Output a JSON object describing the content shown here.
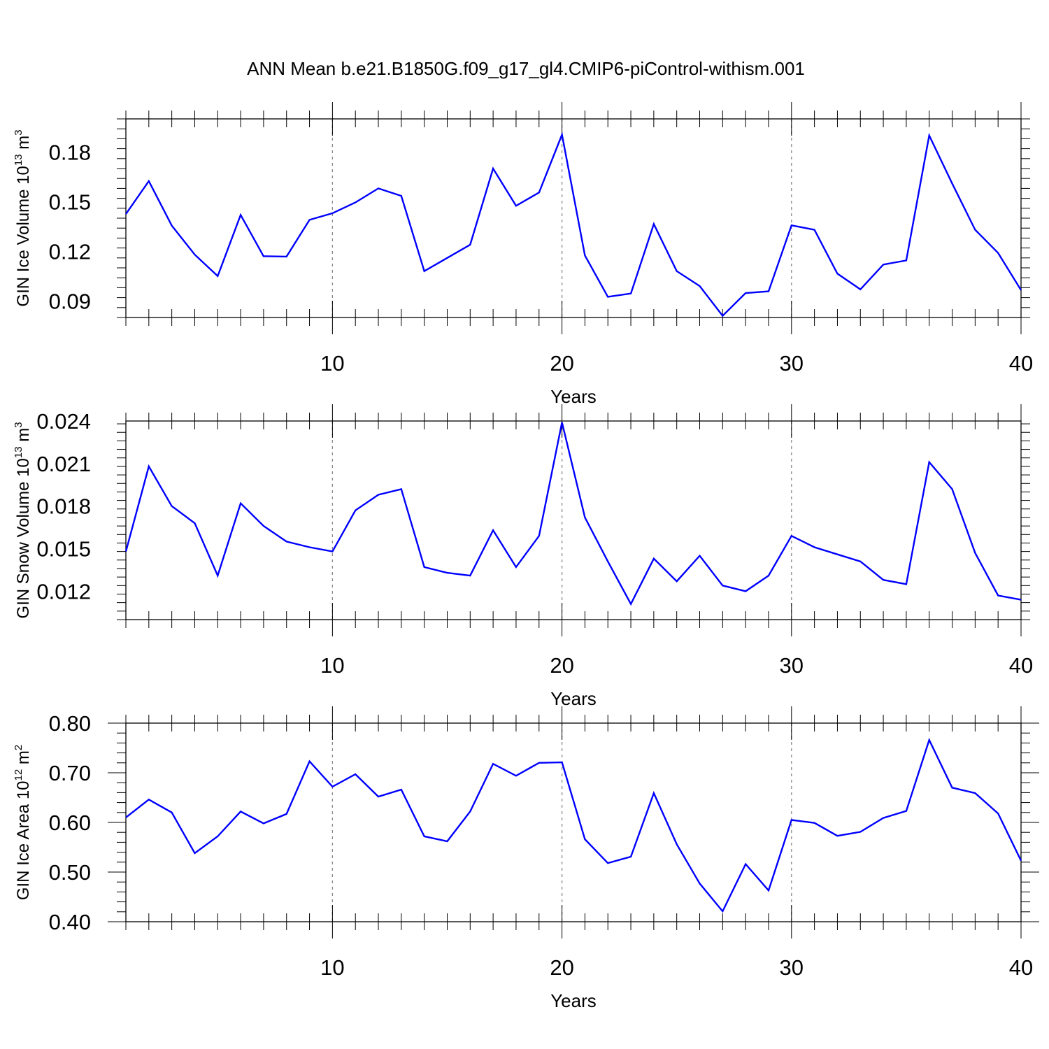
{
  "title": "ANN Mean b.e21.B1850G.f09_g17_gl4.CMIP6-piControl-withism.001",
  "colors": {
    "line": "#0000ff",
    "axis": "#000000",
    "grid": "#888888"
  },
  "chart_data": [
    {
      "type": "line",
      "ylabel": "GIN Ice Volume 10",
      "ylabel_exp": "13",
      "ylabel_unit": " m",
      "ylabel_unit_exp": "3",
      "xlabel": "Years",
      "xlim": [
        1,
        40
      ],
      "ylim": [
        0.08,
        0.2
      ],
      "xticks": [
        10,
        20,
        30,
        40
      ],
      "xtick_labels": [
        "10",
        "20",
        "30",
        "40"
      ],
      "yticks": [
        0.09,
        0.12,
        0.15,
        0.18
      ],
      "ytick_labels": [
        "0.09",
        "0.12",
        "0.15",
        "0.18"
      ],
      "grid_x": [
        10,
        20,
        30
      ],
      "x": [
        1,
        2,
        3,
        4,
        5,
        6,
        7,
        8,
        9,
        10,
        11,
        12,
        13,
        14,
        15,
        16,
        17,
        18,
        19,
        20,
        21,
        22,
        23,
        24,
        25,
        26,
        27,
        28,
        29,
        30,
        31,
        32,
        33,
        34,
        35,
        36,
        37,
        38,
        39,
        40
      ],
      "series": [
        {
          "values": [
            0.1425,
            0.1624,
            0.1355,
            0.118,
            0.105,
            0.142,
            0.117,
            0.1168,
            0.139,
            0.143,
            0.1495,
            0.158,
            0.1535,
            0.108,
            0.116,
            0.124,
            0.17,
            0.1475,
            0.1555,
            0.1905,
            0.1175,
            0.0925,
            0.0945,
            0.1365,
            0.108,
            0.099,
            0.081,
            0.0948,
            0.0958,
            0.1357,
            0.133,
            0.1065,
            0.097,
            0.112,
            0.1145,
            0.19,
            0.161,
            0.133,
            0.119,
            0.0965
          ]
        }
      ]
    },
    {
      "type": "line",
      "ylabel": "GIN Snow Volume 10",
      "ylabel_exp": "13",
      "ylabel_unit": " m",
      "ylabel_unit_exp": "3",
      "xlabel": "Years",
      "xlim": [
        1,
        40
      ],
      "ylim": [
        0.01,
        0.024
      ],
      "xticks": [
        10,
        20,
        30,
        40
      ],
      "xtick_labels": [
        "10",
        "20",
        "30",
        "40"
      ],
      "yticks": [
        0.012,
        0.015,
        0.018,
        0.021,
        0.024
      ],
      "ytick_labels": [
        "0.012",
        "0.015",
        "0.018",
        "0.021",
        "0.024"
      ],
      "grid_x": [
        10,
        20,
        30
      ],
      "x": [
        1,
        2,
        3,
        4,
        5,
        6,
        7,
        8,
        9,
        10,
        11,
        12,
        13,
        14,
        15,
        16,
        17,
        18,
        19,
        20,
        21,
        22,
        23,
        24,
        25,
        26,
        27,
        28,
        29,
        30,
        31,
        32,
        33,
        34,
        35,
        36,
        37,
        38,
        39,
        40
      ],
      "series": [
        {
          "values": [
            0.0148,
            0.0208,
            0.018,
            0.0168,
            0.0131,
            0.0182,
            0.0166,
            0.0155,
            0.0151,
            0.0148,
            0.0177,
            0.0188,
            0.0192,
            0.0137,
            0.0133,
            0.0131,
            0.0163,
            0.0137,
            0.0159,
            0.0239,
            0.0172,
            0.0141,
            0.0111,
            0.0143,
            0.0127,
            0.0145,
            0.0124,
            0.012,
            0.0131,
            0.0159,
            0.0151,
            0.0146,
            0.0141,
            0.0128,
            0.0125,
            0.0211,
            0.0192,
            0.0147,
            0.0117,
            0.0114
          ]
        }
      ]
    },
    {
      "type": "line",
      "ylabel": "GIN Ice Area 10",
      "ylabel_exp": "12",
      "ylabel_unit": " m",
      "ylabel_unit_exp": "2",
      "xlabel": "Years",
      "xlim": [
        1,
        40
      ],
      "ylim": [
        0.4,
        0.8
      ],
      "xticks": [
        10,
        20,
        30,
        40
      ],
      "xtick_labels": [
        "10",
        "20",
        "30",
        "40"
      ],
      "yticks": [
        0.4,
        0.5,
        0.6,
        0.7,
        0.8
      ],
      "ytick_labels": [
        "0.40",
        "0.50",
        "0.60",
        "0.70",
        "0.80"
      ],
      "grid_x": [
        10,
        20,
        30
      ],
      "x": [
        1,
        2,
        3,
        4,
        5,
        6,
        7,
        8,
        9,
        10,
        11,
        12,
        13,
        14,
        15,
        16,
        17,
        18,
        19,
        20,
        21,
        22,
        23,
        24,
        25,
        26,
        27,
        28,
        29,
        30,
        31,
        32,
        33,
        34,
        35,
        36,
        37,
        38,
        39,
        40
      ],
      "series": [
        {
          "values": [
            0.61,
            0.646,
            0.62,
            0.538,
            0.572,
            0.622,
            0.598,
            0.617,
            0.723,
            0.672,
            0.697,
            0.652,
            0.666,
            0.572,
            0.562,
            0.622,
            0.718,
            0.694,
            0.72,
            0.721,
            0.566,
            0.518,
            0.531,
            0.659,
            0.556,
            0.477,
            0.421,
            0.516,
            0.463,
            0.605,
            0.599,
            0.573,
            0.581,
            0.609,
            0.623,
            0.766,
            0.67,
            0.659,
            0.618,
            0.523
          ]
        }
      ]
    }
  ]
}
